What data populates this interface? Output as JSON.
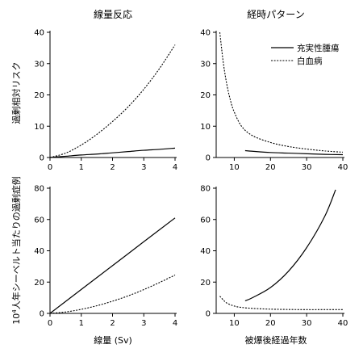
{
  "titles": {
    "left": "線量反応",
    "right": "経時パターン"
  },
  "ylabels": {
    "top": "過剰相対リスク",
    "bottom_prefix": "10",
    "bottom_sup": "4",
    "bottom_suffix": "人年シーベルト当たりの過剰症例"
  },
  "xlabels": {
    "left": "線量 (Sv)",
    "right": "被爆後経過年数"
  },
  "legend": {
    "solid": "充実性腫瘍",
    "dotted": "白血病"
  },
  "chart_data": [
    {
      "id": "top-left",
      "type": "line",
      "title": "線量反応",
      "ylabel": "過剰相対リスク",
      "xlim": [
        0,
        4
      ],
      "ylim": [
        0,
        40
      ],
      "xticks": [
        0,
        1,
        2,
        3,
        4
      ],
      "yticks": [
        0,
        10,
        20,
        30,
        40
      ],
      "series": [
        {
          "name": "充実性腫瘍",
          "style": "solid",
          "x": [
            0,
            0.5,
            1,
            1.5,
            2,
            2.5,
            3,
            3.5,
            4
          ],
          "y": [
            0,
            0.4,
            0.8,
            1.1,
            1.5,
            1.9,
            2.3,
            2.6,
            3.0
          ]
        },
        {
          "name": "白血病",
          "style": "dotted",
          "x": [
            0,
            0.5,
            1,
            1.5,
            2,
            2.5,
            3,
            3.5,
            4
          ],
          "y": [
            0,
            1.4,
            4.0,
            7.4,
            11.5,
            16.2,
            21.8,
            28.4,
            36.0
          ]
        }
      ]
    },
    {
      "id": "top-right",
      "type": "line",
      "title": "経時パターン",
      "xlim": [
        5,
        40
      ],
      "ylim": [
        0,
        40
      ],
      "xticks": [
        10,
        20,
        30,
        40
      ],
      "yticks": [
        0,
        10,
        20,
        30,
        40
      ],
      "series": [
        {
          "name": "充実性腫瘍",
          "style": "solid",
          "x": [
            13,
            15,
            20,
            25,
            30,
            35,
            40
          ],
          "y": [
            2.2,
            2.0,
            1.6,
            1.4,
            1.2,
            1.0,
            0.9
          ]
        },
        {
          "name": "白血病",
          "style": "dotted",
          "x": [
            6,
            7,
            8,
            9,
            10,
            12,
            15,
            20,
            25,
            30,
            35,
            40
          ],
          "y": [
            40,
            30,
            23,
            18,
            14.5,
            10,
            7.0,
            4.8,
            3.5,
            2.7,
            2.1,
            1.7
          ]
        }
      ]
    },
    {
      "id": "bottom-left",
      "type": "line",
      "ylabel": "10⁴人年シーベルト当たりの過剰症例",
      "xlabel": "線量 (Sv)",
      "xlim": [
        0,
        4
      ],
      "ylim": [
        0,
        80
      ],
      "xticks": [
        0,
        1,
        2,
        3,
        4
      ],
      "yticks": [
        0,
        20,
        40,
        60,
        80
      ],
      "series": [
        {
          "name": "充実性腫瘍",
          "style": "solid",
          "x": [
            0,
            1,
            2,
            3,
            4
          ],
          "y": [
            0,
            15.3,
            30.5,
            45.8,
            61
          ]
        },
        {
          "name": "白血病",
          "style": "dotted",
          "x": [
            0,
            0.5,
            1,
            1.5,
            2,
            2.5,
            3,
            3.5,
            4
          ],
          "y": [
            0,
            0.9,
            2.6,
            4.9,
            7.8,
            11.2,
            15.2,
            19.7,
            24.5
          ]
        }
      ]
    },
    {
      "id": "bottom-right",
      "type": "line",
      "xlabel": "被爆後経過年数",
      "xlim": [
        5,
        40
      ],
      "ylim": [
        0,
        80
      ],
      "xticks": [
        10,
        20,
        30,
        40
      ],
      "yticks": [
        0,
        20,
        40,
        60,
        80
      ],
      "series": [
        {
          "name": "充実性腫瘍",
          "style": "solid",
          "x": [
            13,
            15,
            20,
            25,
            30,
            35,
            38
          ],
          "y": [
            8,
            10,
            16.5,
            27,
            42,
            62,
            79
          ]
        },
        {
          "name": "白血病",
          "style": "dotted",
          "x": [
            6,
            7,
            8,
            10,
            12,
            15,
            20,
            25,
            30,
            35,
            40
          ],
          "y": [
            11,
            8.5,
            6.5,
            4.7,
            3.8,
            3.2,
            2.7,
            2.5,
            2.4,
            2.4,
            2.4
          ]
        }
      ]
    }
  ]
}
